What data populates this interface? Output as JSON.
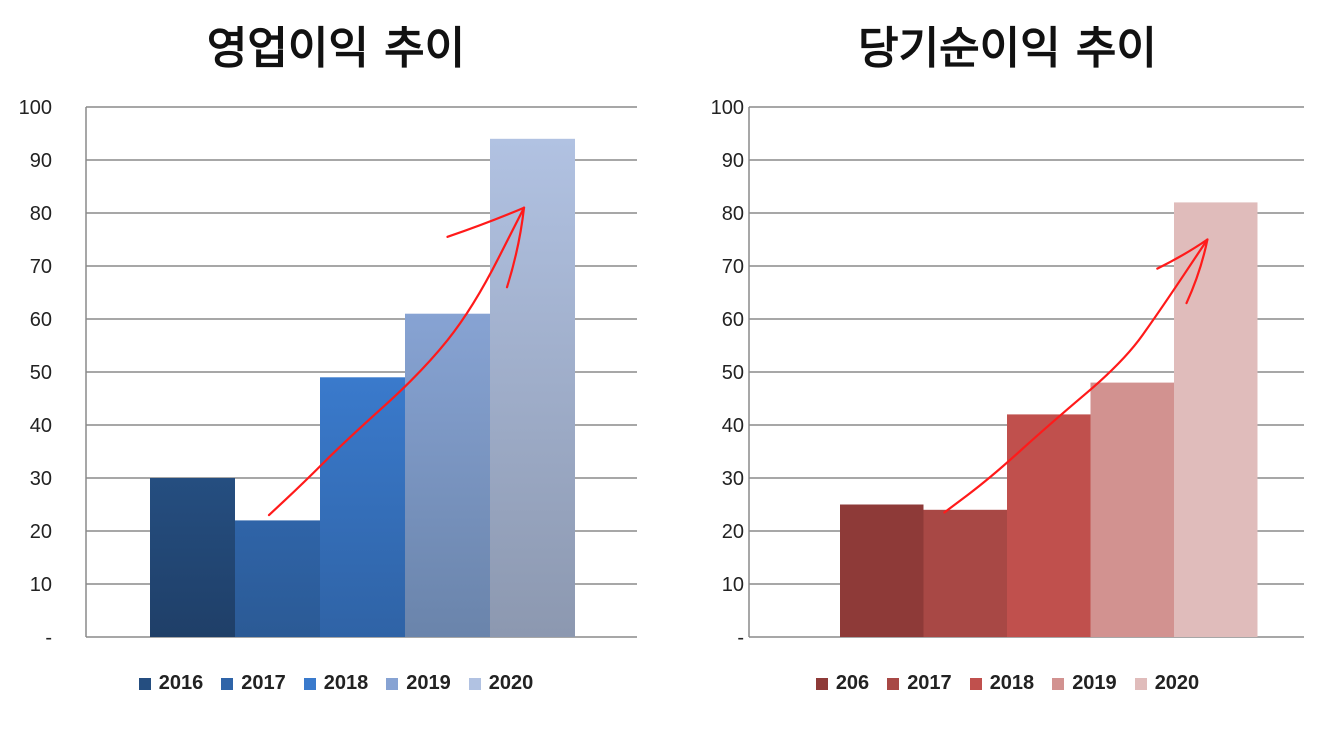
{
  "chart_data": [
    {
      "type": "bar",
      "title": "영업이익 추이",
      "categories": [
        "2016",
        "2017",
        "2018",
        "2019",
        "2020"
      ],
      "values": [
        30,
        22,
        49,
        61,
        94
      ],
      "ylim": [
        0,
        100
      ],
      "yticks": [
        "-",
        "10",
        "20",
        "30",
        "40",
        "50",
        "60",
        "70",
        "80",
        "90",
        "100"
      ],
      "grid": true,
      "legend_position": "bottom",
      "legend": [
        "2016",
        "2017",
        "2018",
        "2019",
        "2020"
      ],
      "colors": [
        "#254e80",
        "#2f64a8",
        "#3a7acc",
        "#87a3d3",
        "#b1c2e2"
      ],
      "colors_bottom": [
        "#1f3f68",
        "#2b5a95",
        "#2f63a6",
        "#6a84ab",
        "#8c98b0"
      ],
      "trend_arrow_color": "#ff1a1a"
    },
    {
      "type": "bar",
      "title": "당기순이익 추이",
      "categories": [
        "206",
        "2017",
        "2018",
        "2019",
        "2020"
      ],
      "values": [
        25,
        24,
        42,
        48,
        82
      ],
      "ylim": [
        0,
        100
      ],
      "yticks": [
        "-",
        "10",
        "20",
        "30",
        "40",
        "50",
        "60",
        "70",
        "80",
        "90",
        "100"
      ],
      "grid": true,
      "legend_position": "bottom",
      "legend": [
        "206",
        "2017",
        "2018",
        "2019",
        "2020"
      ],
      "colors": [
        "#8e3a38",
        "#a84845",
        "#c0504d",
        "#d29290",
        "#e0bcbb"
      ],
      "colors_bottom": [
        "#8e3a38",
        "#a84845",
        "#c0504d",
        "#d29290",
        "#e0bcbb"
      ],
      "trend_arrow_color": "#ff1a1a"
    }
  ]
}
